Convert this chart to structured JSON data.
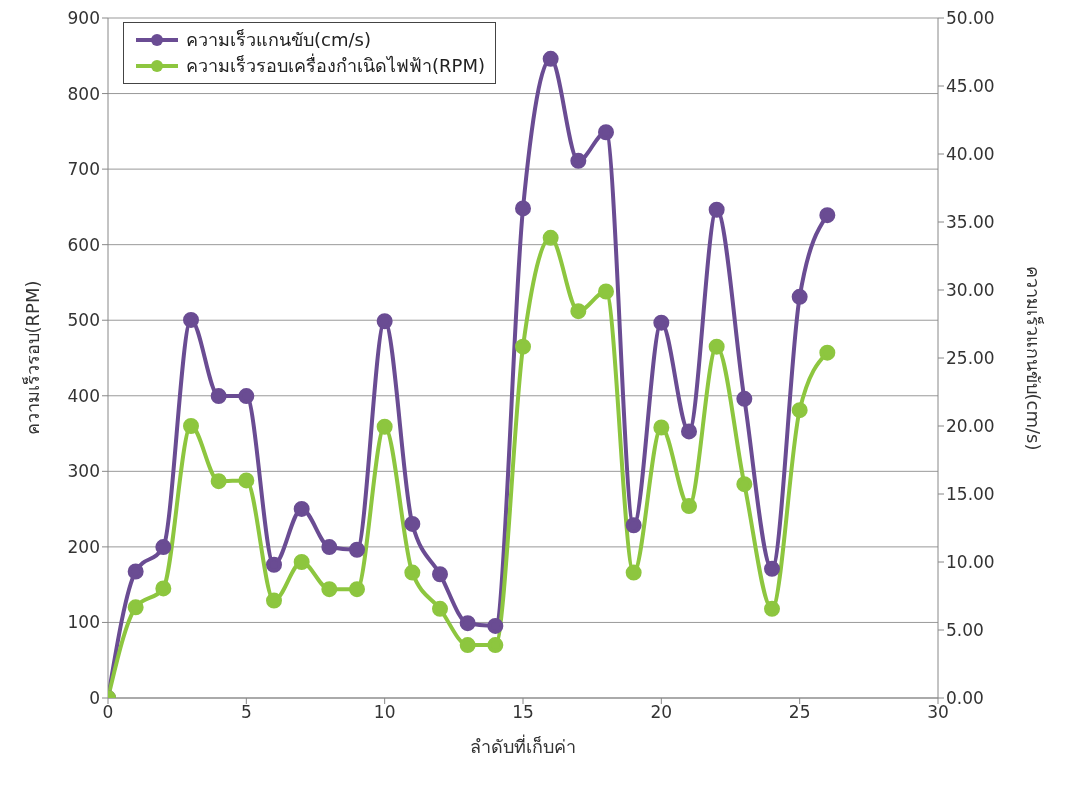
{
  "chart_data": {
    "type": "line",
    "xlabel": "ลำดับที่เก็บค่า",
    "ylabel": "ความเร็วรอบ(RPM)",
    "y2label": "ความเร็วแกนขับ(cm/s)",
    "x": [
      0,
      1,
      2,
      3,
      4,
      5,
      6,
      7,
      8,
      9,
      10,
      11,
      12,
      13,
      14,
      15,
      16,
      17,
      18,
      19,
      20,
      21,
      22,
      23,
      24,
      25,
      26
    ],
    "series": [
      {
        "name": "ความเร็วแกนขับ(cm/s)",
        "color": "#6a4c93",
        "axis": "y2",
        "values": [
          0,
          9.3,
          11.1,
          27.8,
          22.2,
          22.2,
          9.8,
          13.9,
          11.1,
          10.9,
          27.7,
          12.8,
          9.1,
          5.5,
          5.3,
          36.0,
          47.0,
          39.5,
          41.6,
          12.7,
          27.6,
          19.6,
          35.9,
          22.0,
          9.5,
          29.5,
          35.5
        ]
      },
      {
        "name": "ความเร็วรอบเครื่องกำเนิดไฟฟ้า(RPM)",
        "color": "#8dc63f",
        "values": [
          0,
          120,
          145,
          360,
          287,
          288,
          129,
          180,
          144,
          144,
          359,
          166,
          118,
          70,
          70,
          465,
          609,
          512,
          538,
          166,
          358,
          254,
          465,
          283,
          118,
          381,
          457
        ]
      }
    ],
    "xlim": [
      0,
      30
    ],
    "xticks": [
      0,
      5,
      10,
      15,
      20,
      25,
      30
    ],
    "ylim": [
      0,
      900
    ],
    "yticks": [
      0,
      100,
      200,
      300,
      400,
      500,
      600,
      700,
      800,
      900
    ],
    "y2lim": [
      0,
      50
    ],
    "y2ticks": [
      {
        "value": 0,
        "label": "0.00"
      },
      {
        "value": 5,
        "label": "5.00"
      },
      {
        "value": 10,
        "label": "10.00"
      },
      {
        "value": 15,
        "label": "15.00"
      },
      {
        "value": 20,
        "label": "20.00"
      },
      {
        "value": 25,
        "label": "25.00"
      },
      {
        "value": 30,
        "label": "30.00"
      },
      {
        "value": 35,
        "label": "35.00"
      },
      {
        "value": 40,
        "label": "40.00"
      },
      {
        "value": 45,
        "label": "45.00"
      },
      {
        "value": 50,
        "label": "50.00"
      }
    ],
    "grid": "y",
    "legend": "top left",
    "marker": "circle",
    "line_style": "solid"
  }
}
